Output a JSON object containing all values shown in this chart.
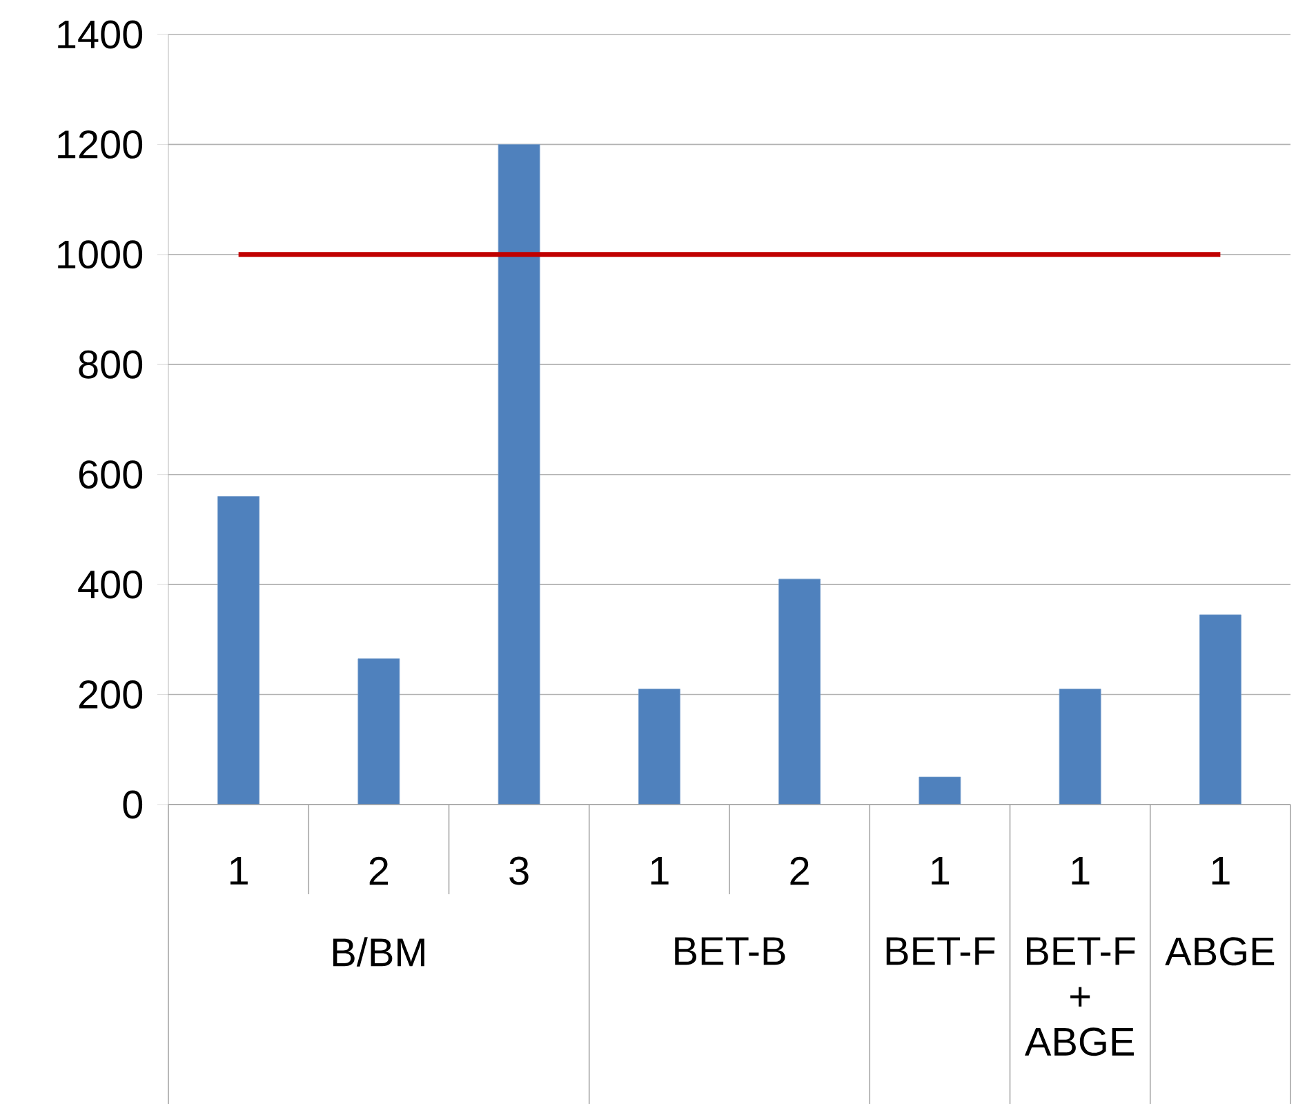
{
  "chart_data": {
    "type": "bar",
    "categories": [
      "1",
      "2",
      "3",
      "1",
      "2",
      "1",
      "1",
      "1"
    ],
    "series": [
      {
        "color": "#4f81bd",
        "values": [
          560,
          265,
          1200,
          210,
          410,
          50,
          210,
          345
        ]
      },
      {
        "type": "line",
        "color": "#c00000",
        "values": [
          1000,
          1000,
          1000,
          1000,
          1000,
          1000,
          1000,
          1000
        ]
      }
    ],
    "annotations": [
      "B/BM",
      "BET-B",
      "BET-F",
      "BET-F + ABGE",
      "ABGE"
    ],
    "ylim": [
      0,
      1400
    ],
    "yticks": [
      0,
      200,
      400,
      600,
      800,
      1000,
      1200,
      1400
    ],
    "grid": "y"
  }
}
